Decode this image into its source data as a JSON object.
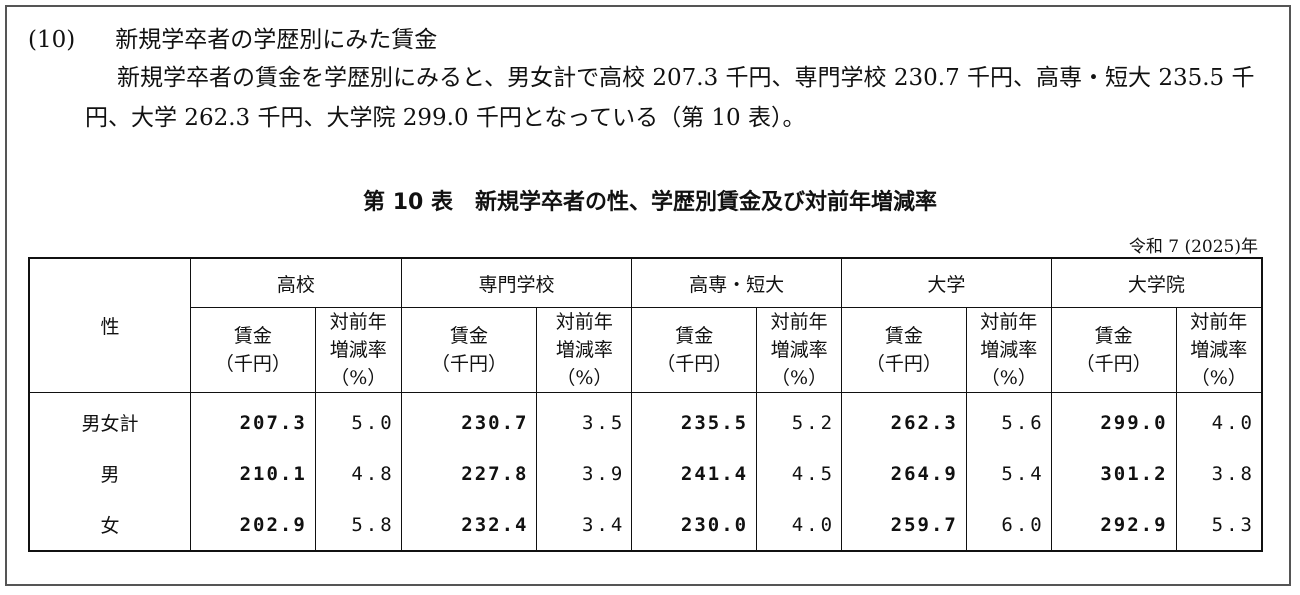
{
  "section": {
    "number": "(10)",
    "title": "新規学卒者の学歴別にみた賃金",
    "paragraph": "新規学卒者の賃金を学歴別にみると、男女計で高校 207.3 千円、専門学校 230.7 千円、高専・短大 235.5 千円、大学 262.3 千円、大学院 299.0 千円となっている（第 10 表）。"
  },
  "table": {
    "title": "第 10 表　新規学卒者の性、学歴別賃金及び対前年増減率",
    "note": "令和 7 (2025)年",
    "corner": "性",
    "groups": [
      {
        "name": "高校",
        "wage_label": "賃金\n（千円）",
        "change_label": "対前年\n増減率\n（%）"
      },
      {
        "name": "専門学校",
        "wage_label": "賃金\n（千円）",
        "change_label": "対前年\n増減率\n（%）"
      },
      {
        "name": "高専・短大",
        "wage_label": "賃金\n（千円）",
        "change_label": "対前年\n増減率\n（%）"
      },
      {
        "name": "大学",
        "wage_label": "賃金\n（千円）",
        "change_label": "対前年\n増減率\n（%）"
      },
      {
        "name": "大学院",
        "wage_label": "賃金\n（千円）",
        "change_label": "対前年\n増減率\n（%）"
      }
    ],
    "rows": [
      {
        "label": "男女計",
        "cells": [
          "207.3",
          "5.0",
          "230.7",
          "3.5",
          "235.5",
          "5.2",
          "262.3",
          "5.6",
          "299.0",
          "4.0"
        ]
      },
      {
        "label": "男",
        "cells": [
          "210.1",
          "4.8",
          "227.8",
          "3.9",
          "241.4",
          "4.5",
          "264.9",
          "5.4",
          "301.2",
          "3.8"
        ]
      },
      {
        "label": "女",
        "cells": [
          "202.9",
          "5.8",
          "232.4",
          "3.4",
          "230.0",
          "4.0",
          "259.7",
          "6.0",
          "292.9",
          "5.3"
        ]
      }
    ]
  }
}
